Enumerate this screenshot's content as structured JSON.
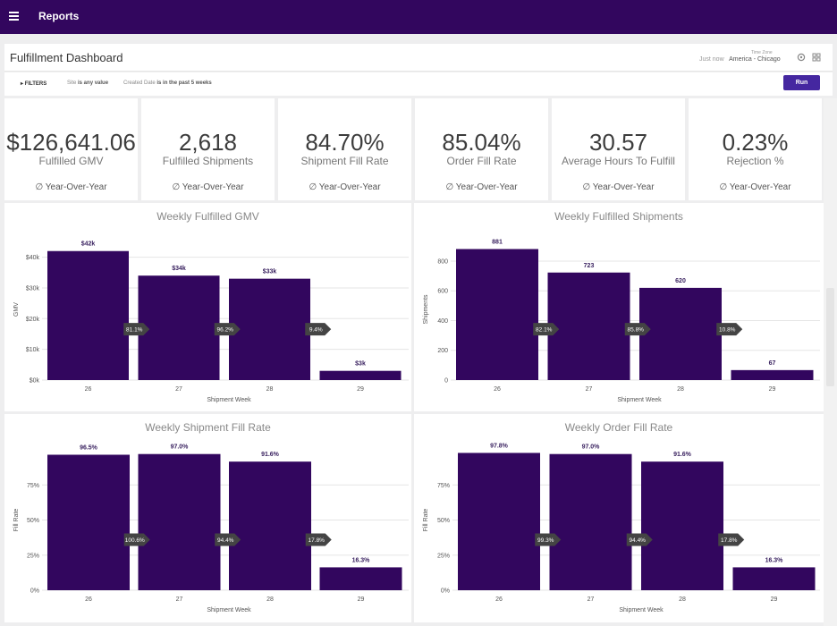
{
  "app": {
    "title": "Reports"
  },
  "dashboard": {
    "title": "Fulfillment Dashboard",
    "timezone_label": "Time Zone",
    "refreshed": "Just now",
    "timezone_value": "America - Chicago"
  },
  "filters": {
    "toggle_label": "FILTERS",
    "site_field": "Site",
    "site_condition": "is any value",
    "date_field": "Created Date",
    "date_condition": "is in the past 5 weeks",
    "run_label": "Run"
  },
  "kpis": [
    {
      "value": "$126,641.06",
      "label": "Fulfilled GMV",
      "comparison": "Year-Over-Year"
    },
    {
      "value": "2,618",
      "label": "Fulfilled Shipments",
      "comparison": "Year-Over-Year"
    },
    {
      "value": "84.70%",
      "label": "Shipment Fill Rate",
      "comparison": "Year-Over-Year"
    },
    {
      "value": "85.04%",
      "label": "Order Fill Rate",
      "comparison": "Year-Over-Year"
    },
    {
      "value": "30.57",
      "label": "Average Hours To Fulfill",
      "comparison": "Year-Over-Year"
    },
    {
      "value": "0.23%",
      "label": "Rejection %",
      "comparison": "Year-Over-Year"
    }
  ],
  "colors": {
    "bar": "#32065e",
    "header": "#32065e",
    "run_button": "#4527a0",
    "arrow": "#444444"
  },
  "chart_data": [
    {
      "type": "bar",
      "title": "Weekly Fulfilled GMV",
      "categories": [
        "26",
        "27",
        "28",
        "29"
      ],
      "values": [
        42000,
        34000,
        33000,
        3000
      ],
      "value_labels": [
        "$42k",
        "$34k",
        "$33k",
        "$3k"
      ],
      "transitions": [
        "81.1%",
        "96.2%",
        "9.4%"
      ],
      "xlabel": "Shipment Week",
      "ylabel": "GMV",
      "ylim": [
        0,
        46000
      ],
      "yticks": [
        0,
        10000,
        20000,
        30000,
        40000
      ],
      "ytick_labels": [
        "$0k",
        "$10k",
        "$20k",
        "$30k",
        "$40k"
      ],
      "grid": true
    },
    {
      "type": "bar",
      "title": "Weekly Fulfilled Shipments",
      "categories": [
        "26",
        "27",
        "28",
        "29"
      ],
      "values": [
        881,
        723,
        620,
        67
      ],
      "value_labels": [
        "881",
        "723",
        "620",
        "67"
      ],
      "transitions": [
        "82.1%",
        "85.8%",
        "10.8%"
      ],
      "xlabel": "Shipment Week",
      "ylabel": "Shipments",
      "ylim": [
        0,
        950
      ],
      "yticks": [
        0,
        200,
        400,
        600,
        800
      ],
      "ytick_labels": [
        "0",
        "200",
        "400",
        "600",
        "800"
      ],
      "grid": true
    },
    {
      "type": "bar",
      "title": "Weekly Shipment Fill Rate",
      "categories": [
        "26",
        "27",
        "28",
        "29"
      ],
      "values": [
        96.5,
        97.0,
        91.6,
        16.3
      ],
      "value_labels": [
        "96.5%",
        "97.0%",
        "91.6%",
        "16.3%"
      ],
      "transitions": [
        "100.6%",
        "94.4%",
        "17.8%"
      ],
      "xlabel": "Shipment Week",
      "ylabel": "Fill Rate",
      "ylim": [
        0,
        100
      ],
      "yticks": [
        0,
        25,
        50,
        75
      ],
      "ytick_labels": [
        "0%",
        "25%",
        "50%",
        "75%"
      ],
      "grid": true
    },
    {
      "type": "bar",
      "title": "Weekly Order Fill Rate",
      "categories": [
        "26",
        "27",
        "28",
        "29"
      ],
      "values": [
        97.8,
        97.0,
        91.6,
        16.3
      ],
      "value_labels": [
        "97.8%",
        "97.0%",
        "91.6%",
        "16.3%"
      ],
      "transitions": [
        "99.3%",
        "94.4%",
        "17.8%"
      ],
      "xlabel": "Shipment Week",
      "ylabel": "Fill Rate",
      "ylim": [
        0,
        100
      ],
      "yticks": [
        0,
        25,
        50,
        75
      ],
      "ytick_labels": [
        "0%",
        "25%",
        "50%",
        "75%"
      ],
      "grid": true
    }
  ]
}
